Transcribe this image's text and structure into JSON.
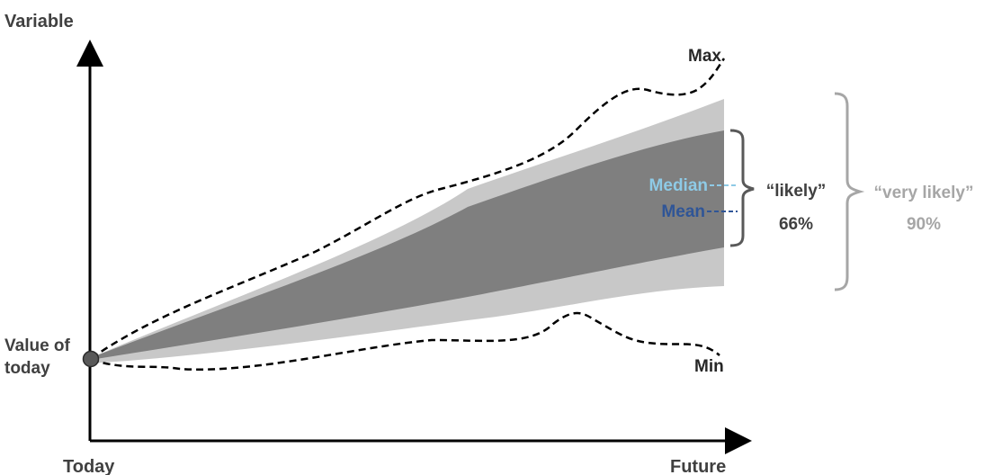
{
  "axes": {
    "y_label": "Variable",
    "x_start_label": "Today",
    "x_end_label": "Future",
    "origin_label_line1": "Value of",
    "origin_label_line2": "today"
  },
  "curves": {
    "max_label": "Max",
    "min_label": "Min",
    "median_label": "Median",
    "mean_label": "Mean"
  },
  "ranges": {
    "likely_label": "“likely”",
    "likely_percent": "66%",
    "very_likely_label": "“very likely”",
    "very_likely_percent": "90%"
  },
  "colors": {
    "band_90": "#c8c8c8",
    "band_66": "#7f7f7f",
    "axis": "#000000",
    "median": "#8ecae6",
    "mean": "#2f5597",
    "likely_text": "#404040",
    "very_likely_text": "#a6a6a6",
    "origin_dot": "#595959"
  }
}
